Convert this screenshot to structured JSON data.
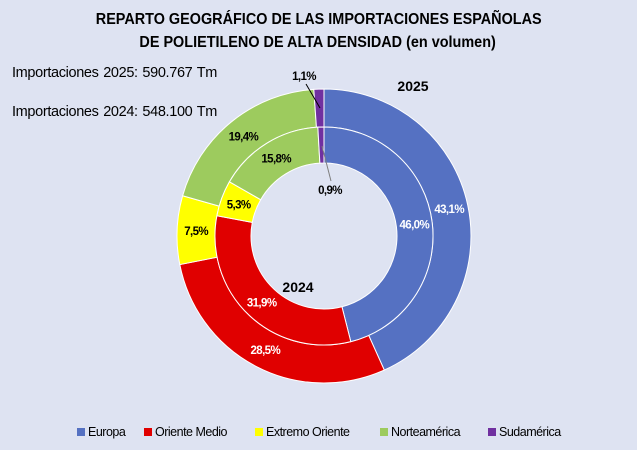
{
  "chart_data": {
    "type": "pie",
    "subtype": "doughnut",
    "title_lines": [
      "REPARTO GEOGRÁFICO DE LAS IMPORTACIONES ESPAÑOLAS",
      "DE POLIETILENO DE ALTA DENSIDAD (en volumen)"
    ],
    "annotations": [
      "Importaciones 2025: 590.767 Tm",
      "Importaciones 2024: 548.100 Tm"
    ],
    "categories": [
      "Europa",
      "Oriente Medio",
      "Extremo Oriente",
      "Norteamérica",
      "Sudamérica"
    ],
    "colors": [
      "#5571c2",
      "#e00000",
      "#ffff00",
      "#9dcb5e",
      "#7030a0"
    ],
    "label_colors": [
      "#ffffff",
      "#ffffff",
      "#000000",
      "#000000",
      "#000000"
    ],
    "series": [
      {
        "name": "2025",
        "ring": "outer",
        "values": [
          43.1,
          28.5,
          7.5,
          19.4,
          1.1
        ],
        "labels": [
          "43,1%",
          "28,5%",
          "7,5%",
          "19,4%",
          "1,1%"
        ]
      },
      {
        "name": "2024",
        "ring": "inner",
        "values": [
          46.0,
          31.9,
          5.3,
          15.8,
          0.9
        ],
        "labels": [
          "46,0%",
          "31,9%",
          "5,3%",
          "15,8%",
          "0,9%"
        ]
      }
    ],
    "unit": "% del volumen",
    "legend_position": "bottom"
  }
}
